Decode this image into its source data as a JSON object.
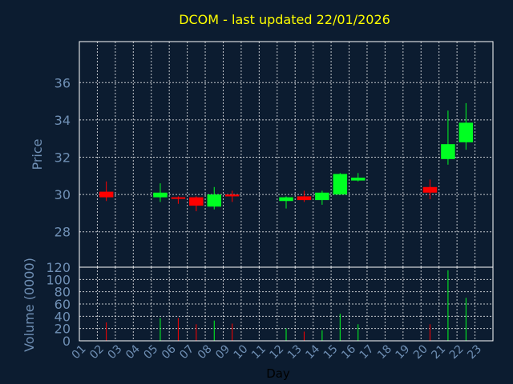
{
  "colors": {
    "background": "#0c1c30",
    "title": "#ffff00",
    "axis_text": "#6f8fb4",
    "axis_label": "#000000",
    "frame": "#ffffff",
    "grid": "#ffffff",
    "up": "#00ff22",
    "down": "#ff0000"
  },
  "chart_data": {
    "type": "candlestick",
    "title": "DCOM - last updated 22/01/2026",
    "xlabel": "Day",
    "price_panel": {
      "ylabel": "Price",
      "ylim": [
        26.1,
        38.2
      ],
      "yticks": [
        28,
        30,
        32,
        34,
        36
      ],
      "grid": true
    },
    "volume_panel": {
      "ylabel": "Volume (0000)",
      "ylim": [
        0,
        120
      ],
      "yticks": [
        0,
        20,
        40,
        60,
        80,
        100,
        120
      ],
      "grid": true
    },
    "x_ticks": [
      "01",
      "02",
      "03",
      "04",
      "05",
      "06",
      "07",
      "08",
      "09",
      "10",
      "11",
      "12",
      "13",
      "14",
      "15",
      "16",
      "17",
      "18",
      "19",
      "20",
      "21",
      "22",
      "23"
    ],
    "candles": [
      {
        "day": "02",
        "open": 30.15,
        "close": 29.85,
        "high": 30.7,
        "low": 29.65,
        "volume": 30
      },
      {
        "day": "05",
        "open": 29.85,
        "close": 30.1,
        "high": 30.6,
        "low": 29.6,
        "volume": 37
      },
      {
        "day": "06",
        "open": 29.85,
        "close": 29.78,
        "high": 29.9,
        "low": 29.5,
        "volume": 37
      },
      {
        "day": "07",
        "open": 29.85,
        "close": 29.4,
        "high": 29.9,
        "low": 29.1,
        "volume": 27
      },
      {
        "day": "08",
        "open": 29.35,
        "close": 30.0,
        "high": 30.4,
        "low": 29.2,
        "volume": 33
      },
      {
        "day": "09",
        "open": 30.0,
        "close": 29.9,
        "high": 30.2,
        "low": 29.6,
        "volume": 28
      },
      {
        "day": "12",
        "open": 29.65,
        "close": 29.85,
        "high": 29.9,
        "low": 29.25,
        "volume": 20
      },
      {
        "day": "13",
        "open": 29.9,
        "close": 29.7,
        "high": 30.2,
        "low": 29.6,
        "volume": 15
      },
      {
        "day": "14",
        "open": 29.7,
        "close": 30.1,
        "high": 30.2,
        "low": 29.45,
        "volume": 17
      },
      {
        "day": "15",
        "open": 30.0,
        "close": 31.1,
        "high": 31.15,
        "low": 30.0,
        "volume": 44
      },
      {
        "day": "16",
        "open": 30.75,
        "close": 30.9,
        "high": 31.15,
        "low": 30.7,
        "volume": 27
      },
      {
        "day": "20",
        "open": 30.4,
        "close": 30.1,
        "high": 30.8,
        "low": 29.75,
        "volume": 27
      },
      {
        "day": "21",
        "open": 31.9,
        "close": 32.7,
        "high": 34.5,
        "low": 31.6,
        "volume": 115
      },
      {
        "day": "22",
        "open": 32.8,
        "close": 33.85,
        "high": 34.9,
        "low": 32.4,
        "volume": 70
      }
    ]
  }
}
